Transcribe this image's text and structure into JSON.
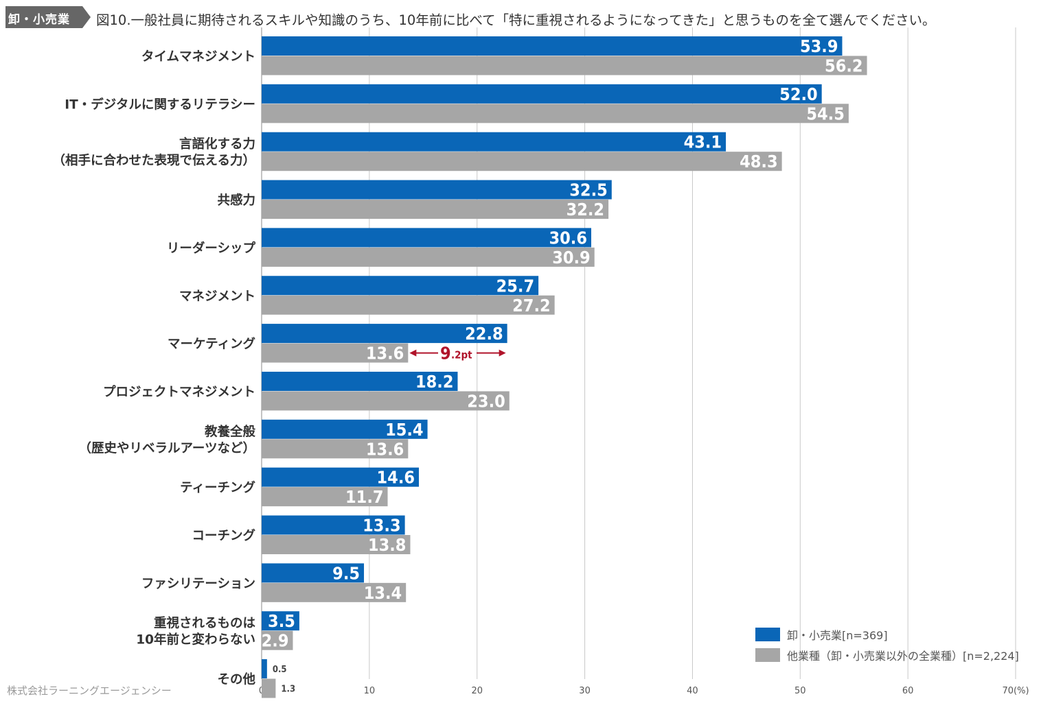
{
  "header": {
    "badge": "卸・小売業",
    "title": "図10.一般社員に期待されるスキルや知識のうち、10年前に比べて「特に重視されるようになってきた」と思うものを全て選んでください。"
  },
  "footer": {
    "credit": "株式会社ラーニングエージェンシー"
  },
  "colors": {
    "series1": "#0a66b7",
    "series2": "#a6a6a6",
    "annotation": "#b0132a",
    "grid": "#c8c8c8",
    "badge": "#666666"
  },
  "chart_data": {
    "type": "bar",
    "orientation": "horizontal",
    "categories": [
      [
        "タイムマネジメント"
      ],
      [
        "IT・デジタルに関するリテラシー"
      ],
      [
        "言語化する力",
        "（相手に合わせた表現で伝える力）"
      ],
      [
        "共感力"
      ],
      [
        "リーダーシップ"
      ],
      [
        "マネジメント"
      ],
      [
        "マーケティング"
      ],
      [
        "プロジェクトマネジメント"
      ],
      [
        "教養全般",
        "（歴史やリベラルアーツなど）"
      ],
      [
        "ティーチング"
      ],
      [
        "コーチング"
      ],
      [
        "ファシリテーション"
      ],
      [
        "重視されるものは",
        "10年前と変わらない"
      ],
      [
        "その他"
      ]
    ],
    "series": [
      {
        "name": "卸・小売業[n=369]",
        "values": [
          53.9,
          52.0,
          43.1,
          32.5,
          30.6,
          25.7,
          22.8,
          18.2,
          15.4,
          14.6,
          13.3,
          9.5,
          3.5,
          0.5
        ]
      },
      {
        "name": "他業種（卸・小売業以外の全業種）[n=2,224]",
        "values": [
          56.2,
          54.5,
          48.3,
          32.2,
          30.9,
          27.2,
          13.6,
          23.0,
          13.6,
          11.7,
          13.8,
          13.4,
          2.9,
          1.3
        ]
      }
    ],
    "xlim": [
      0,
      70
    ],
    "xticks": [
      "0",
      "10",
      "20",
      "30",
      "40",
      "50",
      "60",
      "70(%)"
    ],
    "grid": true,
    "legend_position": "bottom-right",
    "annotation": {
      "category_index": 6,
      "big": "9",
      "small": ".2pt"
    }
  }
}
